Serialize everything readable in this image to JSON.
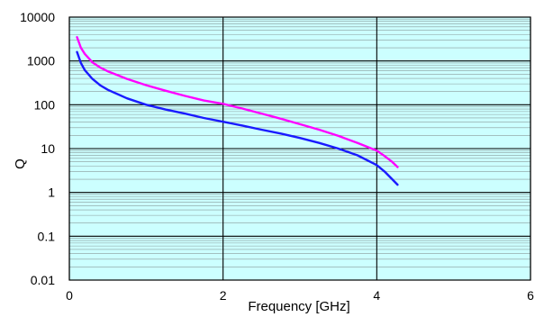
{
  "chart_data": {
    "type": "line",
    "title": "",
    "xlabel": "Frequency [GHz]",
    "ylabel": "Q",
    "xlim": [
      0,
      6
    ],
    "ylim": [
      0.01,
      10000
    ],
    "yscale": "log",
    "grid": true,
    "plot_background": "#ccffff",
    "x_ticks": [
      "0",
      "2",
      "4",
      "6"
    ],
    "x_tick_values": [
      0,
      2,
      4,
      6
    ],
    "y_ticks": [
      "0.01",
      "0.1",
      "1",
      "10",
      "100",
      "1000",
      "10000"
    ],
    "y_tick_values": [
      0.01,
      0.1,
      1,
      10,
      100,
      1000,
      10000
    ],
    "series": [
      {
        "color": "#ff00ff",
        "points": [
          [
            0.1,
            3500
          ],
          [
            0.15,
            2000
          ],
          [
            0.2,
            1450
          ],
          [
            0.3,
            930
          ],
          [
            0.4,
            710
          ],
          [
            0.5,
            580
          ],
          [
            0.75,
            390
          ],
          [
            1.0,
            280
          ],
          [
            1.25,
            210
          ],
          [
            1.5,
            160
          ],
          [
            1.75,
            125
          ],
          [
            2.0,
            105
          ],
          [
            2.25,
            82
          ],
          [
            2.5,
            63
          ],
          [
            2.75,
            48
          ],
          [
            3.0,
            36
          ],
          [
            3.25,
            27
          ],
          [
            3.5,
            19.5
          ],
          [
            3.75,
            13.5
          ],
          [
            4.0,
            9.0
          ],
          [
            4.1,
            6.8
          ],
          [
            4.2,
            5.0
          ],
          [
            4.27,
            3.8
          ]
        ]
      },
      {
        "color": "#1a1aff",
        "points": [
          [
            0.1,
            1600
          ],
          [
            0.15,
            900
          ],
          [
            0.2,
            620
          ],
          [
            0.3,
            390
          ],
          [
            0.4,
            280
          ],
          [
            0.5,
            220
          ],
          [
            0.75,
            140
          ],
          [
            1.0,
            100
          ],
          [
            1.25,
            78
          ],
          [
            1.5,
            63
          ],
          [
            1.75,
            50
          ],
          [
            2.0,
            41
          ],
          [
            2.25,
            33.5
          ],
          [
            2.5,
            27
          ],
          [
            2.75,
            22
          ],
          [
            3.0,
            17.5
          ],
          [
            3.25,
            13.5
          ],
          [
            3.5,
            10
          ],
          [
            3.75,
            7
          ],
          [
            4.0,
            4.2
          ],
          [
            4.1,
            3.0
          ],
          [
            4.2,
            2.0
          ],
          [
            4.27,
            1.5
          ]
        ]
      }
    ]
  }
}
